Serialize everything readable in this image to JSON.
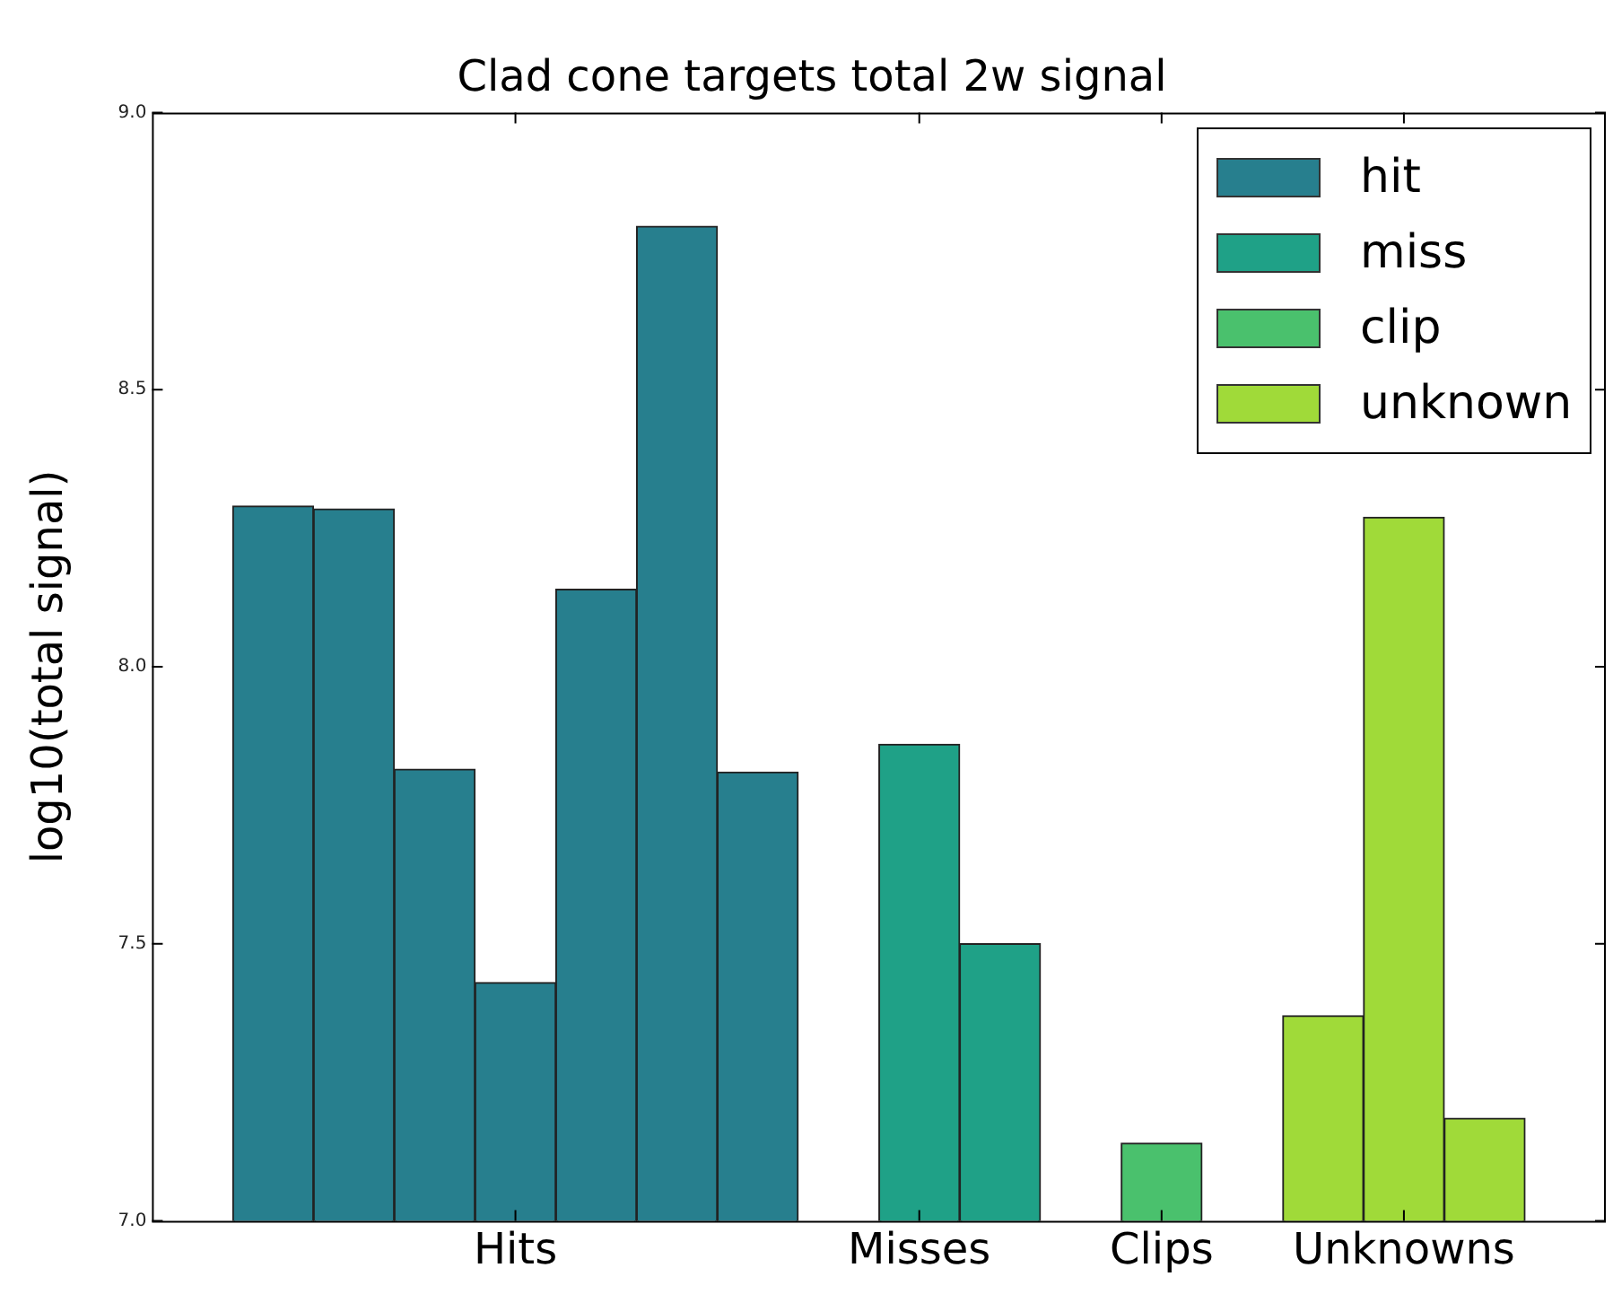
{
  "chart_data": {
    "type": "bar",
    "title": "Clad cone targets total 2w signal",
    "ylabel": "log10(total signal)",
    "categories": [
      null,
      null,
      null,
      null,
      "Hits",
      null,
      null,
      null,
      null,
      "Misses",
      null,
      null,
      "Clips",
      null,
      null,
      "Unknowns",
      null,
      null
    ],
    "ylim": [
      7.0,
      9.0
    ],
    "yticks": [
      {
        "value": 7,
        "label": "7.0"
      },
      {
        "value": 7.5,
        "label": "7.5"
      },
      {
        "value": 8,
        "label": "8.0"
      },
      {
        "value": 8.5,
        "label": "8.5"
      },
      {
        "value": 9,
        "label": "9.0"
      }
    ],
    "series": [
      {
        "name": "hit",
        "color": "#277f8e",
        "values": [
          null,
          8.29,
          8.285,
          7.815,
          7.43,
          8.14,
          8.795,
          7.81,
          null,
          null,
          null,
          null,
          null,
          null,
          null,
          null,
          null,
          null
        ]
      },
      {
        "name": "miss",
        "color": "#1fa187",
        "values": [
          null,
          null,
          null,
          null,
          null,
          null,
          null,
          null,
          null,
          7.86,
          7.5,
          null,
          null,
          null,
          null,
          null,
          null,
          null
        ]
      },
      {
        "name": "clip",
        "color": "#4ac16d",
        "values": [
          null,
          null,
          null,
          null,
          null,
          null,
          null,
          null,
          null,
          null,
          null,
          null,
          7.14,
          null,
          null,
          null,
          null,
          null
        ]
      },
      {
        "name": "unknown",
        "color": "#a0da39",
        "values": [
          null,
          null,
          null,
          null,
          null,
          null,
          null,
          null,
          null,
          null,
          null,
          null,
          null,
          null,
          7.37,
          8.27,
          7.185,
          null
        ]
      }
    ],
    "grid": false,
    "legend": "top right"
  }
}
